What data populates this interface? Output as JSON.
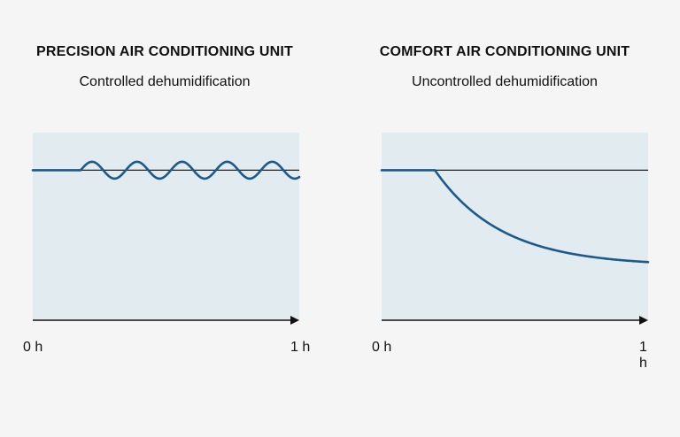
{
  "colors": {
    "plot_bg": "#e2ebf0",
    "curve": "#1c5a8c",
    "axis": "#111111",
    "reference_line": "#222222"
  },
  "chart_data": [
    {
      "type": "line",
      "title": "PRECISION AIR CONDITIONING UNIT",
      "subtitle": "Controlled dehumidification",
      "x_ticks": [
        "0 h",
        "1 h"
      ],
      "xlim": [
        0,
        1
      ],
      "ylim": [
        0,
        1
      ],
      "reference_y": 0.8,
      "series": [
        {
          "shape": "oscillating",
          "flat_until_x": 0.18,
          "level": 0.8,
          "amplitude": 0.045,
          "cycles": 4.85,
          "end_x": 1.0
        }
      ]
    },
    {
      "type": "line",
      "title": "COMFORT AIR CONDITIONING UNIT",
      "subtitle": "Uncontrolled dehumidification",
      "x_ticks": [
        "0 h",
        "1 h"
      ],
      "xlim": [
        0,
        1
      ],
      "ylim": [
        0,
        1
      ],
      "reference_y": 0.8,
      "series": [
        {
          "shape": "decay",
          "flat_until_x": 0.2,
          "level": 0.8,
          "final_level": 0.31,
          "end_x": 1.0
        }
      ]
    }
  ]
}
